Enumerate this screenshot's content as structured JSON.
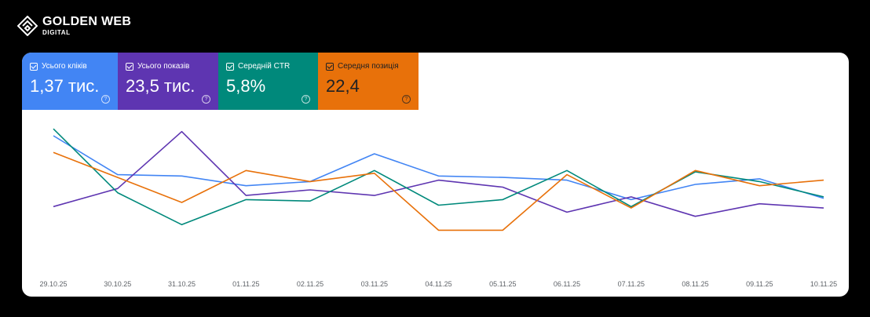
{
  "brand": {
    "name": "GOLDEN WEB",
    "sub": "DIGITAL"
  },
  "cards": [
    {
      "label": "Усього кліків",
      "value": "1,37 тис.",
      "color": "#4285f4"
    },
    {
      "label": "Усього показів",
      "value": "23,5 тис.",
      "color": "#5e35b1"
    },
    {
      "label": "Середній CTR",
      "value": "5,8%",
      "color": "#00897b"
    },
    {
      "label": "Середня позиція",
      "value": "22,4",
      "color": "#e8710a"
    }
  ],
  "chart_data": {
    "type": "line",
    "title": "",
    "xlabel": "",
    "ylabel": "",
    "grid": false,
    "x": [
      "29.10.25",
      "30.10.25",
      "31.10.25",
      "01.11.25",
      "02.11.25",
      "03.11.25",
      "04.11.25",
      "05.11.25",
      "06.11.25",
      "07.11.25",
      "08.11.25",
      "09.11.25",
      "10.11.25"
    ],
    "ylim": [
      0,
      100
    ],
    "series": [
      {
        "color": "#4285f4",
        "values": [
          87,
          59,
          58,
          51,
          54,
          74,
          58,
          57,
          55,
          41,
          52,
          56,
          42
        ]
      },
      {
        "color": "#5e35b1",
        "values": [
          36,
          49,
          90,
          44,
          48,
          44,
          55,
          50,
          32,
          43,
          29,
          38,
          35
        ]
      },
      {
        "color": "#00897b",
        "values": [
          92,
          46,
          23,
          41,
          40,
          62,
          37,
          41,
          62,
          36,
          61,
          54,
          43
        ]
      },
      {
        "color": "#e8710a",
        "values": [
          75,
          57,
          39,
          62,
          54,
          60,
          19,
          19,
          59,
          35,
          62,
          51,
          55
        ]
      }
    ]
  }
}
